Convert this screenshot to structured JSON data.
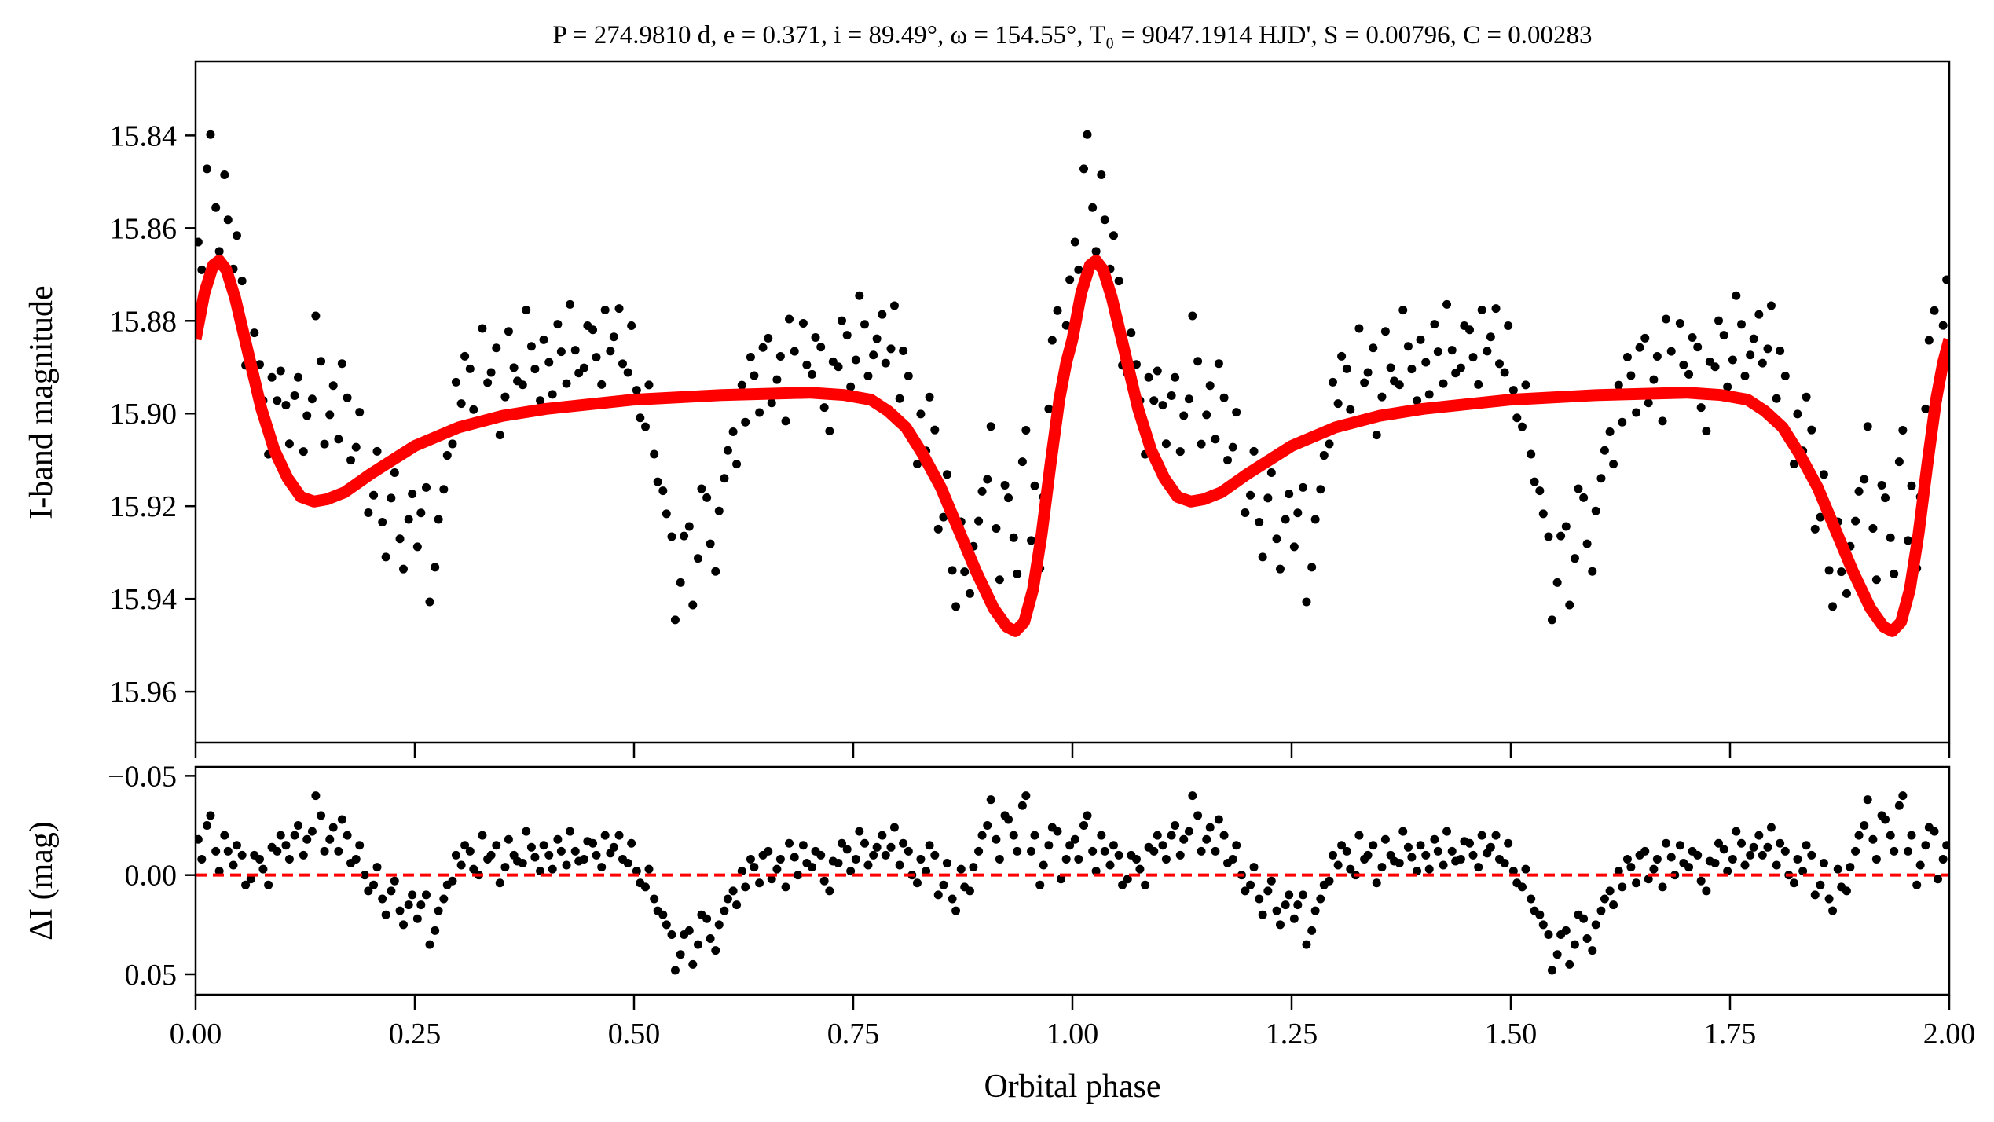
{
  "chart_data": [
    {
      "panel": "top",
      "type": "scatter+line",
      "title": "P = 274.9810 d, e = 0.371, i = 89.49°, ω = 154.55°, T₀ = 9047.1914 HJD', S = 0.00796, C = 0.00283",
      "xlabel": "",
      "ylabel": "I-band magnitude",
      "xlim": [
        0,
        2
      ],
      "ylim": [
        15.971,
        15.824
      ],
      "y_inverted": true,
      "yticks": [
        15.84,
        15.86,
        15.88,
        15.9,
        15.92,
        15.94,
        15.96
      ],
      "ytick_labels": [
        "15.84",
        "15.86",
        "15.88",
        "15.90",
        "15.92",
        "15.94",
        "15.96"
      ],
      "xticks": [
        0,
        0.25,
        0.5,
        0.75,
        1.0,
        1.25,
        1.5,
        1.75,
        2.0
      ],
      "repeat_cycles": 2,
      "model_color": "#ff0000",
      "point_color": "#000000",
      "model": {
        "phase": [
          0.0,
          0.01,
          0.02,
          0.027,
          0.035,
          0.045,
          0.06,
          0.075,
          0.09,
          0.105,
          0.12,
          0.135,
          0.15,
          0.17,
          0.2,
          0.25,
          0.3,
          0.35,
          0.4,
          0.5,
          0.6,
          0.7,
          0.74,
          0.77,
          0.79,
          0.81,
          0.83,
          0.85,
          0.87,
          0.89,
          0.91,
          0.925,
          0.935,
          0.945,
          0.955,
          0.965,
          0.975,
          0.985,
          0.993,
          1.0
        ],
        "mag": [
          15.884,
          15.874,
          15.868,
          15.867,
          15.869,
          15.875,
          15.887,
          15.899,
          15.908,
          15.914,
          15.918,
          15.919,
          15.9185,
          15.917,
          15.913,
          15.907,
          15.903,
          15.9005,
          15.899,
          15.897,
          15.896,
          15.8955,
          15.896,
          15.897,
          15.8995,
          15.903,
          15.909,
          15.916,
          15.925,
          15.934,
          15.942,
          15.946,
          15.947,
          15.945,
          15.938,
          15.926,
          15.911,
          15.897,
          15.889,
          15.884
        ]
      }
    },
    {
      "panel": "bottom",
      "type": "scatter",
      "xlabel": "Orbital phase",
      "ylabel": "ΔI (mag)",
      "xlim": [
        0,
        2
      ],
      "ylim": [
        0.0603,
        -0.0545
      ],
      "y_inverted": true,
      "yticks": [
        -0.05,
        0.0,
        0.05
      ],
      "ytick_labels": [
        "−0.05",
        "0.00",
        "0.05"
      ],
      "xticks": [
        0,
        0.25,
        0.5,
        0.75,
        1.0,
        1.25,
        1.5,
        1.75,
        2.0
      ],
      "xtick_labels": [
        "0.00",
        "0.25",
        "0.50",
        "0.75",
        "1.00",
        "1.25",
        "1.50",
        "1.75",
        "2.00"
      ],
      "reference_line": 0.0,
      "reference_color": "#ff0000",
      "residual_definition": "observed − model",
      "residuals_A_phase_offset": 0.003,
      "residuals_A": [
        -0.018,
        -0.025,
        -0.012,
        -0.02,
        -0.005,
        -0.01,
        0.002,
        -0.008,
        0.005,
        -0.012,
        -0.015,
        -0.02,
        -0.01,
        -0.022,
        -0.03,
        -0.018,
        -0.012,
        -0.02,
        -0.008,
        0.0,
        0.005,
        0.012,
        0.008,
        0.018,
        0.015,
        0.022,
        0.01,
        0.028,
        0.012,
        0.003,
        -0.005,
        -0.012,
        0.0,
        -0.008,
        -0.015,
        -0.004,
        -0.01,
        -0.006,
        -0.014,
        -0.002,
        -0.01,
        -0.018,
        -0.005,
        -0.012,
        -0.008,
        -0.016,
        -0.004,
        -0.011,
        -0.02,
        -0.006,
        -0.002,
        0.006,
        0.012,
        0.02,
        0.03,
        0.04,
        0.028,
        0.035,
        0.022,
        0.038,
        0.018,
        0.008,
        -0.002,
        -0.008,
        0.004,
        -0.012,
        -0.003,
        0.006,
        -0.009,
        -0.015,
        -0.004,
        -0.01,
        0.008,
        -0.006,
        -0.013,
        -0.008,
        -0.016,
        -0.01,
        -0.02,
        -0.014,
        -0.005,
        -0.012,
        0.004,
        -0.002,
        -0.01,
        0.005,
        0.012,
        -0.003,
        0.008,
        -0.012,
        -0.025,
        -0.018,
        -0.03,
        -0.02,
        -0.035,
        -0.012,
        0.005,
        -0.015,
        -0.022,
        -0.008
      ],
      "residuals_B_phase_offset": 0.007,
      "residuals_B": [
        -0.008,
        -0.03,
        -0.002,
        -0.012,
        -0.015,
        0.005,
        -0.01,
        -0.003,
        -0.014,
        -0.02,
        -0.008,
        -0.025,
        -0.018,
        -0.04,
        -0.012,
        -0.024,
        -0.028,
        -0.006,
        -0.015,
        0.008,
        -0.004,
        0.02,
        0.003,
        0.025,
        0.01,
        0.015,
        0.035,
        0.018,
        0.005,
        -0.01,
        -0.015,
        -0.003,
        -0.02,
        -0.01,
        0.004,
        -0.018,
        -0.007,
        -0.022,
        -0.009,
        -0.015,
        -0.003,
        -0.012,
        -0.022,
        -0.007,
        -0.017,
        -0.01,
        -0.02,
        -0.014,
        -0.008,
        -0.016,
        0.004,
        -0.003,
        0.018,
        0.025,
        0.048,
        0.03,
        0.045,
        0.02,
        0.032,
        0.025,
        0.012,
        0.015,
        0.006,
        -0.004,
        -0.01,
        0.002,
        -0.008,
        -0.016,
        0.0,
        -0.006,
        -0.012,
        0.003,
        -0.007,
        -0.016,
        -0.002,
        -0.022,
        -0.005,
        -0.014,
        -0.01,
        -0.024,
        -0.016,
        0.0,
        -0.008,
        -0.015,
        0.01,
        -0.006,
        0.018,
        0.006,
        -0.004,
        -0.02,
        -0.038,
        -0.008,
        -0.028,
        -0.012,
        -0.04,
        -0.02,
        -0.005,
        -0.024,
        0.002,
        -0.015
      ]
    }
  ]
}
